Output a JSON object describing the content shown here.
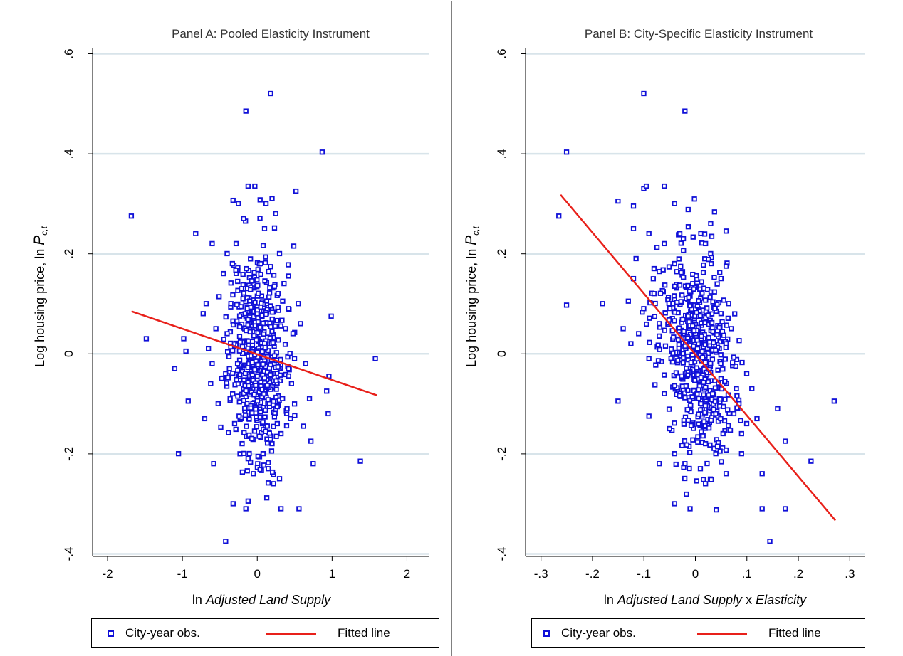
{
  "chart_data": [
    {
      "type": "scatter",
      "title": "Panel A: Pooled Elasticity Instrument",
      "xlabel_prefix": "ln ",
      "xlabel_italic": "Adjusted Land Supply",
      "xlabel_suffix": "",
      "ylabel_main": "Log housing price,  ln ",
      "ylabel_var": "P",
      "ylabel_sub": "c,t",
      "xlim": [
        -2.2,
        2.3
      ],
      "ylim": [
        -0.405,
        0.605
      ],
      "xticks": [
        -2,
        -1,
        0,
        1,
        2
      ],
      "xtick_labels": [
        "-2",
        "-1",
        "0",
        "1",
        "2"
      ],
      "yticks": [
        -0.4,
        -0.2,
        0,
        0.2,
        0.4,
        0.6
      ],
      "ytick_labels": [
        "-.4",
        "-.2",
        "0",
        ".2",
        ".4",
        ".6"
      ],
      "grid": true,
      "marker_color": "#1010d8",
      "line_color": "#e8201a",
      "series": [
        {
          "name": "City-year obs.",
          "type": "scatter",
          "points": [
            [
              0.18,
              0.52
            ],
            [
              -0.15,
              0.485
            ],
            [
              0.87,
              0.403
            ],
            [
              -1.68,
              0.275
            ],
            [
              -1.48,
              0.03
            ],
            [
              -0.82,
              0.24
            ],
            [
              -1.05,
              -0.2
            ],
            [
              -0.42,
              -0.375
            ],
            [
              1.38,
              -0.215
            ],
            [
              1.58,
              -0.01
            ],
            [
              0.99,
              0.075
            ],
            [
              0.96,
              -0.045
            ],
            [
              0.93,
              -0.075
            ],
            [
              0.95,
              -0.12
            ],
            [
              0.52,
              0.325
            ],
            [
              0.49,
              0.215
            ],
            [
              -0.12,
              0.335
            ],
            [
              -0.03,
              0.335
            ],
            [
              0.12,
              0.3
            ],
            [
              -0.25,
              0.3
            ],
            [
              0.2,
              0.31
            ],
            [
              -0.6,
              0.22
            ],
            [
              -0.68,
              0.1
            ],
            [
              -0.72,
              0.08
            ],
            [
              -0.98,
              0.03
            ],
            [
              -0.95,
              0.005
            ],
            [
              -1.1,
              -0.03
            ],
            [
              -0.92,
              -0.095
            ],
            [
              -0.7,
              -0.13
            ],
            [
              -0.58,
              -0.22
            ],
            [
              -0.32,
              -0.3
            ],
            [
              -0.15,
              -0.31
            ],
            [
              0.32,
              -0.31
            ],
            [
              0.56,
              -0.31
            ],
            [
              0.75,
              -0.22
            ],
            [
              0.72,
              -0.175
            ],
            [
              0.62,
              -0.145
            ],
            [
              -0.65,
              0.01
            ],
            [
              -0.62,
              -0.06
            ],
            [
              -0.52,
              -0.1
            ],
            [
              -0.45,
              0.16
            ],
            [
              -0.4,
              0.2
            ],
            [
              0.36,
              0.14
            ],
            [
              0.42,
              0.09
            ],
            [
              0.48,
              0.04
            ],
            [
              0.5,
              -0.01
            ],
            [
              0.46,
              -0.06
            ],
            [
              0.4,
              -0.11
            ],
            [
              0.32,
              -0.16
            ],
            [
              0.3,
              -0.25
            ],
            [
              0.22,
              -0.26
            ],
            [
              0.15,
              -0.23
            ],
            [
              -0.05,
              -0.24
            ],
            [
              -0.12,
              -0.21
            ],
            [
              0.08,
              -0.2
            ],
            [
              0.25,
              0.28
            ],
            [
              -0.18,
              0.27
            ],
            [
              0.1,
              0.25
            ],
            [
              -0.28,
              0.22
            ],
            [
              0.3,
              0.2
            ],
            [
              -0.33,
              0.18
            ],
            [
              0.05,
              0.18
            ],
            [
              0.28,
              0.12
            ],
            [
              -0.35,
              0.1
            ],
            [
              0.38,
              0.05
            ],
            [
              -0.4,
              0.04
            ],
            [
              0.42,
              -0.03
            ],
            [
              -0.42,
              -0.04
            ],
            [
              0.34,
              -0.09
            ],
            [
              -0.36,
              -0.09
            ],
            [
              0.27,
              -0.14
            ],
            [
              -0.3,
              -0.14
            ],
            [
              0.2,
              -0.18
            ],
            [
              -0.2,
              -0.18
            ],
            [
              -0.55,
              0.05
            ],
            [
              0.58,
              0.06
            ],
            [
              0.65,
              -0.02
            ],
            [
              0.7,
              -0.09
            ],
            [
              -0.6,
              -0.02
            ],
            [
              0.55,
              0.1
            ]
          ]
        },
        {
          "name": "Fitted line",
          "type": "line",
          "points": [
            [
              -1.68,
              0.085
            ],
            [
              1.6,
              -0.083
            ]
          ]
        }
      ],
      "cloud": {
        "count": 560,
        "center_x": 0.0,
        "center_y": 0.0,
        "sd_x": 0.18,
        "sd_y": 0.1,
        "slope": -0.05,
        "seed": 11
      },
      "legend": {
        "items": [
          "City-year obs.",
          "Fitted line"
        ],
        "placement": "bottom"
      }
    },
    {
      "type": "scatter",
      "title": "Panel B: City-Specific Elasticity Instrument",
      "xlabel_prefix": "ln ",
      "xlabel_italic": "Adjusted Land Supply",
      "xlabel_suffix": " x ",
      "xlabel_italic2": "Elasticity",
      "ylabel_main": "Log housing price,  ln ",
      "ylabel_var": "P",
      "ylabel_sub": "c,t",
      "xlim": [
        -0.33,
        0.33
      ],
      "ylim": [
        -0.405,
        0.605
      ],
      "xticks": [
        -0.3,
        -0.2,
        -0.1,
        0,
        0.1,
        0.2,
        0.3
      ],
      "xtick_labels": [
        "-.3",
        "-.2",
        "-.1",
        "0",
        ".1",
        ".2",
        ".3"
      ],
      "yticks": [
        -0.4,
        -0.2,
        0,
        0.2,
        0.4,
        0.6
      ],
      "ytick_labels": [
        "-.4",
        "-.2",
        "0",
        ".2",
        ".4",
        ".6"
      ],
      "grid": true,
      "marker_color": "#1010d8",
      "line_color": "#e8201a",
      "series": [
        {
          "name": "City-year obs.",
          "type": "scatter",
          "points": [
            [
              -0.1,
              0.52
            ],
            [
              -0.02,
              0.485
            ],
            [
              -0.25,
              0.403
            ],
            [
              -0.265,
              0.275
            ],
            [
              -0.25,
              0.097
            ],
            [
              -0.18,
              0.1
            ],
            [
              -0.15,
              -0.095
            ],
            [
              -0.09,
              -0.125
            ],
            [
              0.145,
              -0.375
            ],
            [
              0.225,
              -0.215
            ],
            [
              0.27,
              -0.095
            ],
            [
              0.175,
              -0.175
            ],
            [
              0.175,
              -0.31
            ],
            [
              0.13,
              -0.31
            ],
            [
              0.13,
              -0.24
            ],
            [
              0.16,
              -0.11
            ],
            [
              -0.15,
              0.305
            ],
            [
              -0.12,
              0.295
            ],
            [
              -0.1,
              0.33
            ],
            [
              -0.095,
              0.335
            ],
            [
              -0.06,
              0.335
            ],
            [
              -0.04,
              0.3
            ],
            [
              -0.09,
              0.24
            ],
            [
              -0.12,
              0.25
            ],
            [
              -0.115,
              0.19
            ],
            [
              -0.12,
              0.15
            ],
            [
              -0.13,
              0.105
            ],
            [
              -0.14,
              0.05
            ],
            [
              -0.125,
              0.02
            ],
            [
              -0.04,
              -0.3
            ],
            [
              -0.01,
              -0.31
            ],
            [
              -0.07,
              -0.22
            ],
            [
              0.04,
              -0.2
            ],
            [
              0.09,
              -0.2
            ],
            [
              0.1,
              -0.14
            ],
            [
              0.08,
              -0.07
            ],
            [
              0.06,
              0.245
            ],
            [
              0.06,
              0.175
            ],
            [
              0.065,
              0.1
            ],
            [
              0.07,
              0.05
            ],
            [
              0.1,
              -0.04
            ],
            [
              0.11,
              -0.07
            ],
            [
              0.09,
              -0.16
            ],
            [
              0.06,
              -0.24
            ],
            [
              0.02,
              -0.26
            ],
            [
              0.03,
              0.2
            ],
            [
              -0.06,
              0.22
            ],
            [
              0.05,
              0.15
            ],
            [
              -0.08,
              0.12
            ],
            [
              0.05,
              0.08
            ],
            [
              -0.07,
              0.06
            ],
            [
              0.06,
              0.02
            ],
            [
              -0.09,
              -0.01
            ],
            [
              0.05,
              -0.05
            ],
            [
              -0.06,
              -0.08
            ],
            [
              0.04,
              -0.12
            ],
            [
              -0.05,
              -0.15
            ],
            [
              0.02,
              -0.18
            ],
            [
              -0.04,
              -0.2
            ],
            [
              0.12,
              -0.13
            ],
            [
              -0.1,
              0.09
            ],
            [
              -0.11,
              0.04
            ],
            [
              0.085,
              -0.1
            ],
            [
              0.075,
              -0.12
            ],
            [
              0.03,
              0.26
            ],
            [
              -0.03,
              0.24
            ],
            [
              0.02,
              0.22
            ],
            [
              -0.02,
              -0.22
            ],
            [
              0.01,
              -0.23
            ],
            [
              -0.08,
              0.17
            ]
          ]
        },
        {
          "name": "Fitted line",
          "type": "line",
          "points": [
            [
              -0.262,
              0.318
            ],
            [
              0.272,
              -0.333
            ]
          ]
        }
      ],
      "cloud": {
        "count": 560,
        "center_x": 0.0,
        "center_y": 0.0,
        "sd_x": 0.035,
        "sd_y": 0.1,
        "slope": -0.9,
        "seed": 23
      },
      "legend": {
        "items": [
          "City-year obs.",
          "Fitted line"
        ],
        "placement": "bottom"
      }
    }
  ]
}
